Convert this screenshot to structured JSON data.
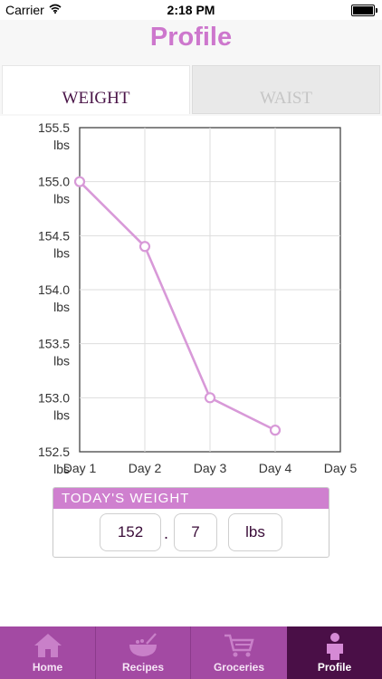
{
  "status_bar": {
    "carrier": "Carrier",
    "time": "2:18 PM",
    "icons": [
      "wifi-icon",
      "battery-icon"
    ]
  },
  "nav": {
    "title": "Profile"
  },
  "tabs": [
    {
      "label": "WEIGHT",
      "active": true
    },
    {
      "label": "WAIST",
      "active": false
    }
  ],
  "chart_data": {
    "type": "line",
    "categories": [
      "Day 1",
      "Day 2",
      "Day 3",
      "Day 4",
      "Day 5"
    ],
    "series": [
      {
        "values": [
          155.0,
          154.4,
          153.0,
          152.7,
          null
        ]
      }
    ],
    "y_ticks": [
      "155.5",
      "155.0",
      "154.5",
      "154.0",
      "153.5",
      "153.0",
      "152.5"
    ],
    "y_unit": "lbs",
    "ylim": [
      152.5,
      155.5
    ],
    "grid": true,
    "colors": {
      "line": "#d899d8",
      "marker_fill": "#ffffff"
    }
  },
  "today": {
    "header": "TODAY'S WEIGHT",
    "integer": "152",
    "separator": ".",
    "decimal": "7",
    "unit": "lbs"
  },
  "tab_bar": {
    "items": [
      {
        "label": "Home",
        "icon": "house-icon",
        "active": false
      },
      {
        "label": "Recipes",
        "icon": "bowl-icon",
        "active": false
      },
      {
        "label": "Groceries",
        "icon": "cart-icon",
        "active": false
      },
      {
        "label": "Profile",
        "icon": "person-icon",
        "active": true
      }
    ]
  },
  "colors": {
    "accent": "#cd77cd",
    "tab_bar": "#a34aa3",
    "tab_bar_active": "#4a0f47",
    "text_dark": "#4a1548"
  }
}
